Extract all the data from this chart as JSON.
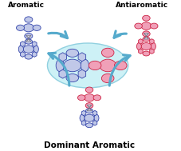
{
  "title": "Dominant Aromatic",
  "label_aromatic": "Aromatic",
  "label_antiaromatic": "Antiaromatic",
  "bg_color": "#ffffff",
  "ellipse_fill": "#c8f0f5",
  "ellipse_edge": "#88ccdd",
  "arrow_color": "#55aacc",
  "blue_fill": "#c0c8e8",
  "blue_edge": "#3344aa",
  "pink_fill": "#f0a0b8",
  "pink_edge": "#cc2244",
  "cone_fill": "#d8d8e4",
  "cone_edge": "#777788",
  "figsize": [
    2.28,
    1.89
  ],
  "dpi": 100
}
